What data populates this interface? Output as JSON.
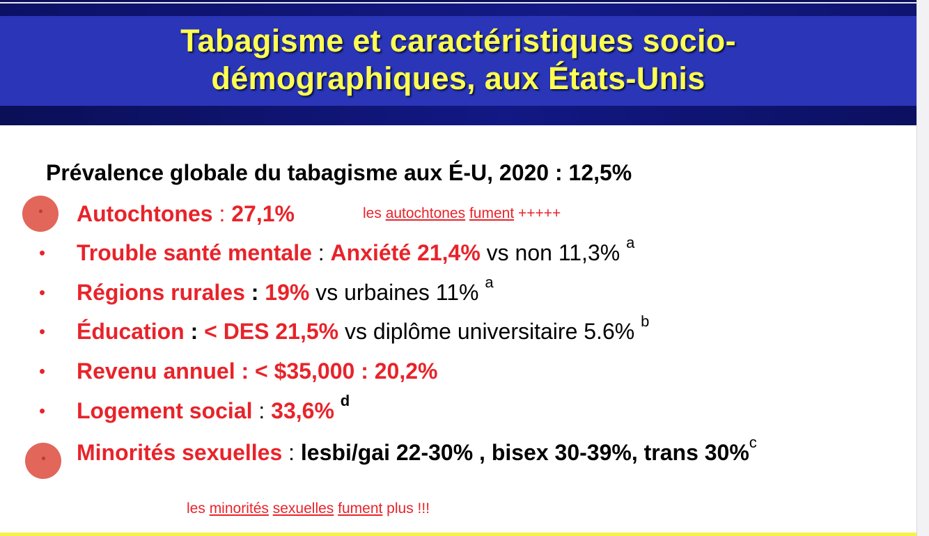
{
  "title": {
    "line1": "Tabagisme et caractéristiques socio-",
    "line2": "démographiques, aux États-Unis"
  },
  "prevalence": {
    "label": "Prévalence globale du tabagisme aux É-U, 2020 : ",
    "value": "12,5%"
  },
  "items": [
    {
      "label": "Autochtones",
      "sep": " : ",
      "value": "27,1%",
      "rest": "",
      "sup": "",
      "marked": true
    },
    {
      "label": "Trouble santé mentale",
      "sep": " : ",
      "value": "Anxiété 21,4%",
      "rest": " vs non 11,3% ",
      "sup": "a",
      "marked": false
    },
    {
      "label": "Régions rurales",
      "sep": " : ",
      "value": "19%",
      "rest": " vs urbaines 11% ",
      "sup": "a",
      "marked": false
    },
    {
      "label": "Éducation",
      "sep": " : ",
      "value": "< DES 21,5%",
      "rest": " vs diplôme universitaire 5.6% ",
      "sup": "b",
      "marked": false
    },
    {
      "label": "Revenu annuel : < $35,000 : 20,2%",
      "sep": "",
      "value": "",
      "rest": "",
      "sup": "",
      "marked": false
    },
    {
      "label": "Logement social",
      "sep": " : ",
      "value": "33,6% ",
      "rest": "",
      "sup": "d",
      "marked": false
    },
    {
      "label": "Minorités sexuelles",
      "sep": " : ",
      "value": "lesbi/gai 22-30% , bisex 30-39%, trans 30%",
      "rest": "",
      "sup": "c",
      "marked": true
    }
  ],
  "notes": {
    "autochtones": {
      "w1": "les ",
      "w2": "autochtones",
      "w3": " ",
      "w4": "fument",
      "w5": " +++++"
    },
    "minorites": {
      "w1": "les ",
      "w2": "minorités",
      "w3": " ",
      "w4": "sexuelles",
      "w5": " ",
      "w6": "fument",
      "w7": " plus !!!"
    }
  },
  "colors": {
    "header": "#2a35b8",
    "title": "#ffff52",
    "accent_red": "#e8232a",
    "marker": "#e05a4c",
    "bottom_bar": "#f5f34a"
  },
  "icons": {
    "bullet": "bullet-dot",
    "marker": "annotation-marker-circle"
  }
}
